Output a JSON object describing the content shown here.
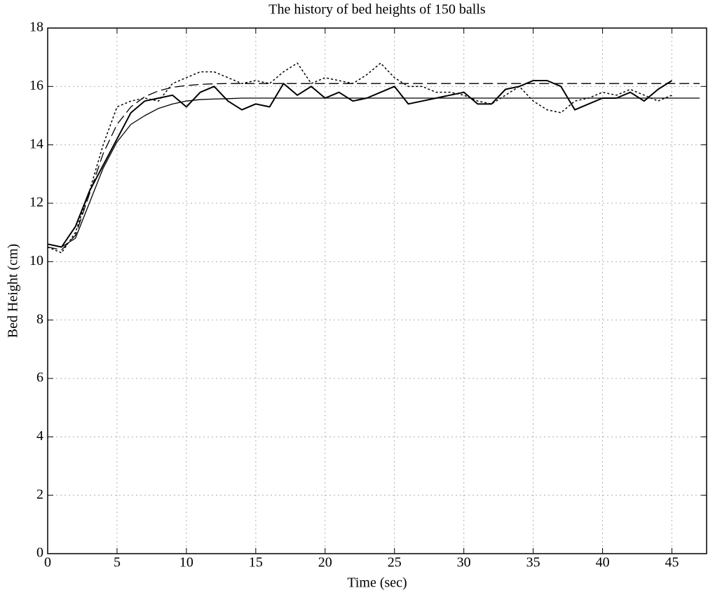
{
  "chart_data": {
    "type": "line",
    "title": "The history of bed heights of 150 balls",
    "x_label": "Time (sec)",
    "y_label": "Bed Height (cm)",
    "x": [
      0,
      1,
      2,
      3,
      4,
      5,
      6,
      7,
      8,
      9,
      10,
      11,
      12,
      13,
      14,
      15,
      16,
      17,
      18,
      19,
      20,
      21,
      22,
      23,
      24,
      25,
      26,
      27,
      28,
      29,
      30,
      31,
      32,
      33,
      34,
      35,
      36,
      37,
      38,
      39,
      40,
      41,
      42,
      43,
      44,
      45,
      46,
      47
    ],
    "series": [
      {
        "color": "#000000",
        "dash": "solid",
        "width": 2,
        "values": [
          10.6,
          10.5,
          11.2,
          12.4,
          13.3,
          14.2,
          15.1,
          15.5,
          15.6,
          15.7,
          15.3,
          15.8,
          16.0,
          15.5,
          15.2,
          15.4,
          15.3,
          16.1,
          15.7,
          16.0,
          15.6,
          15.8,
          15.5,
          15.6,
          15.8,
          16.0,
          15.4,
          15.5,
          15.6,
          15.7,
          15.8,
          15.4,
          15.4,
          15.9,
          16.0,
          16.2,
          16.2,
          16.0,
          15.2,
          15.4,
          15.6,
          15.6,
          15.8,
          15.5,
          15.9,
          16.2,
          null,
          null
        ]
      },
      {
        "color": "#000000",
        "dash": "dotted",
        "width": 1.5,
        "values": [
          10.5,
          10.3,
          11.0,
          12.4,
          14.0,
          15.3,
          15.5,
          15.6,
          15.5,
          16.1,
          16.3,
          16.5,
          16.5,
          16.3,
          16.1,
          16.2,
          16.1,
          16.5,
          16.8,
          16.1,
          16.3,
          16.2,
          16.1,
          16.4,
          16.8,
          16.3,
          16.0,
          16.0,
          15.8,
          15.8,
          15.7,
          15.5,
          15.4,
          15.7,
          16.0,
          15.5,
          15.2,
          15.1,
          15.5,
          15.6,
          15.8,
          15.7,
          15.9,
          15.7,
          15.5,
          15.7,
          null,
          null
        ]
      },
      {
        "color": "#000000",
        "dash": "dashed",
        "width": 1.3,
        "values": [
          10.5,
          10.4,
          10.9,
          12.3,
          13.7,
          14.7,
          15.3,
          15.65,
          15.85,
          15.97,
          16.03,
          16.07,
          16.09,
          16.1,
          16.1,
          16.1,
          16.1,
          16.1,
          16.1,
          16.1,
          16.1,
          16.1,
          16.1,
          16.1,
          16.1,
          16.1,
          16.1,
          16.1,
          16.1,
          16.1,
          16.1,
          16.1,
          16.1,
          16.1,
          16.1,
          16.1,
          16.1,
          16.1,
          16.1,
          16.1,
          16.1,
          16.1,
          16.1,
          16.1,
          16.1,
          16.1,
          16.1,
          16.1
        ]
      },
      {
        "color": "#000000",
        "dash": "solid",
        "width": 1.3,
        "values": [
          10.6,
          10.5,
          10.8,
          12.0,
          13.2,
          14.1,
          14.7,
          15.0,
          15.25,
          15.4,
          15.5,
          15.55,
          15.57,
          15.58,
          15.6,
          15.6,
          15.6,
          15.6,
          15.6,
          15.6,
          15.6,
          15.6,
          15.6,
          15.6,
          15.6,
          15.6,
          15.6,
          15.6,
          15.6,
          15.6,
          15.6,
          15.6,
          15.6,
          15.6,
          15.6,
          15.6,
          15.6,
          15.6,
          15.6,
          15.6,
          15.6,
          15.6,
          15.6,
          15.6,
          15.6,
          15.6,
          15.6,
          15.6
        ]
      }
    ],
    "xlim": [
      0,
      47.5
    ],
    "ylim": [
      0,
      18
    ],
    "xticks": [
      0,
      5,
      10,
      15,
      20,
      25,
      30,
      35,
      40,
      45
    ],
    "yticks": [
      0,
      2,
      4,
      6,
      8,
      10,
      12,
      14,
      16,
      18
    ],
    "grid": true
  }
}
